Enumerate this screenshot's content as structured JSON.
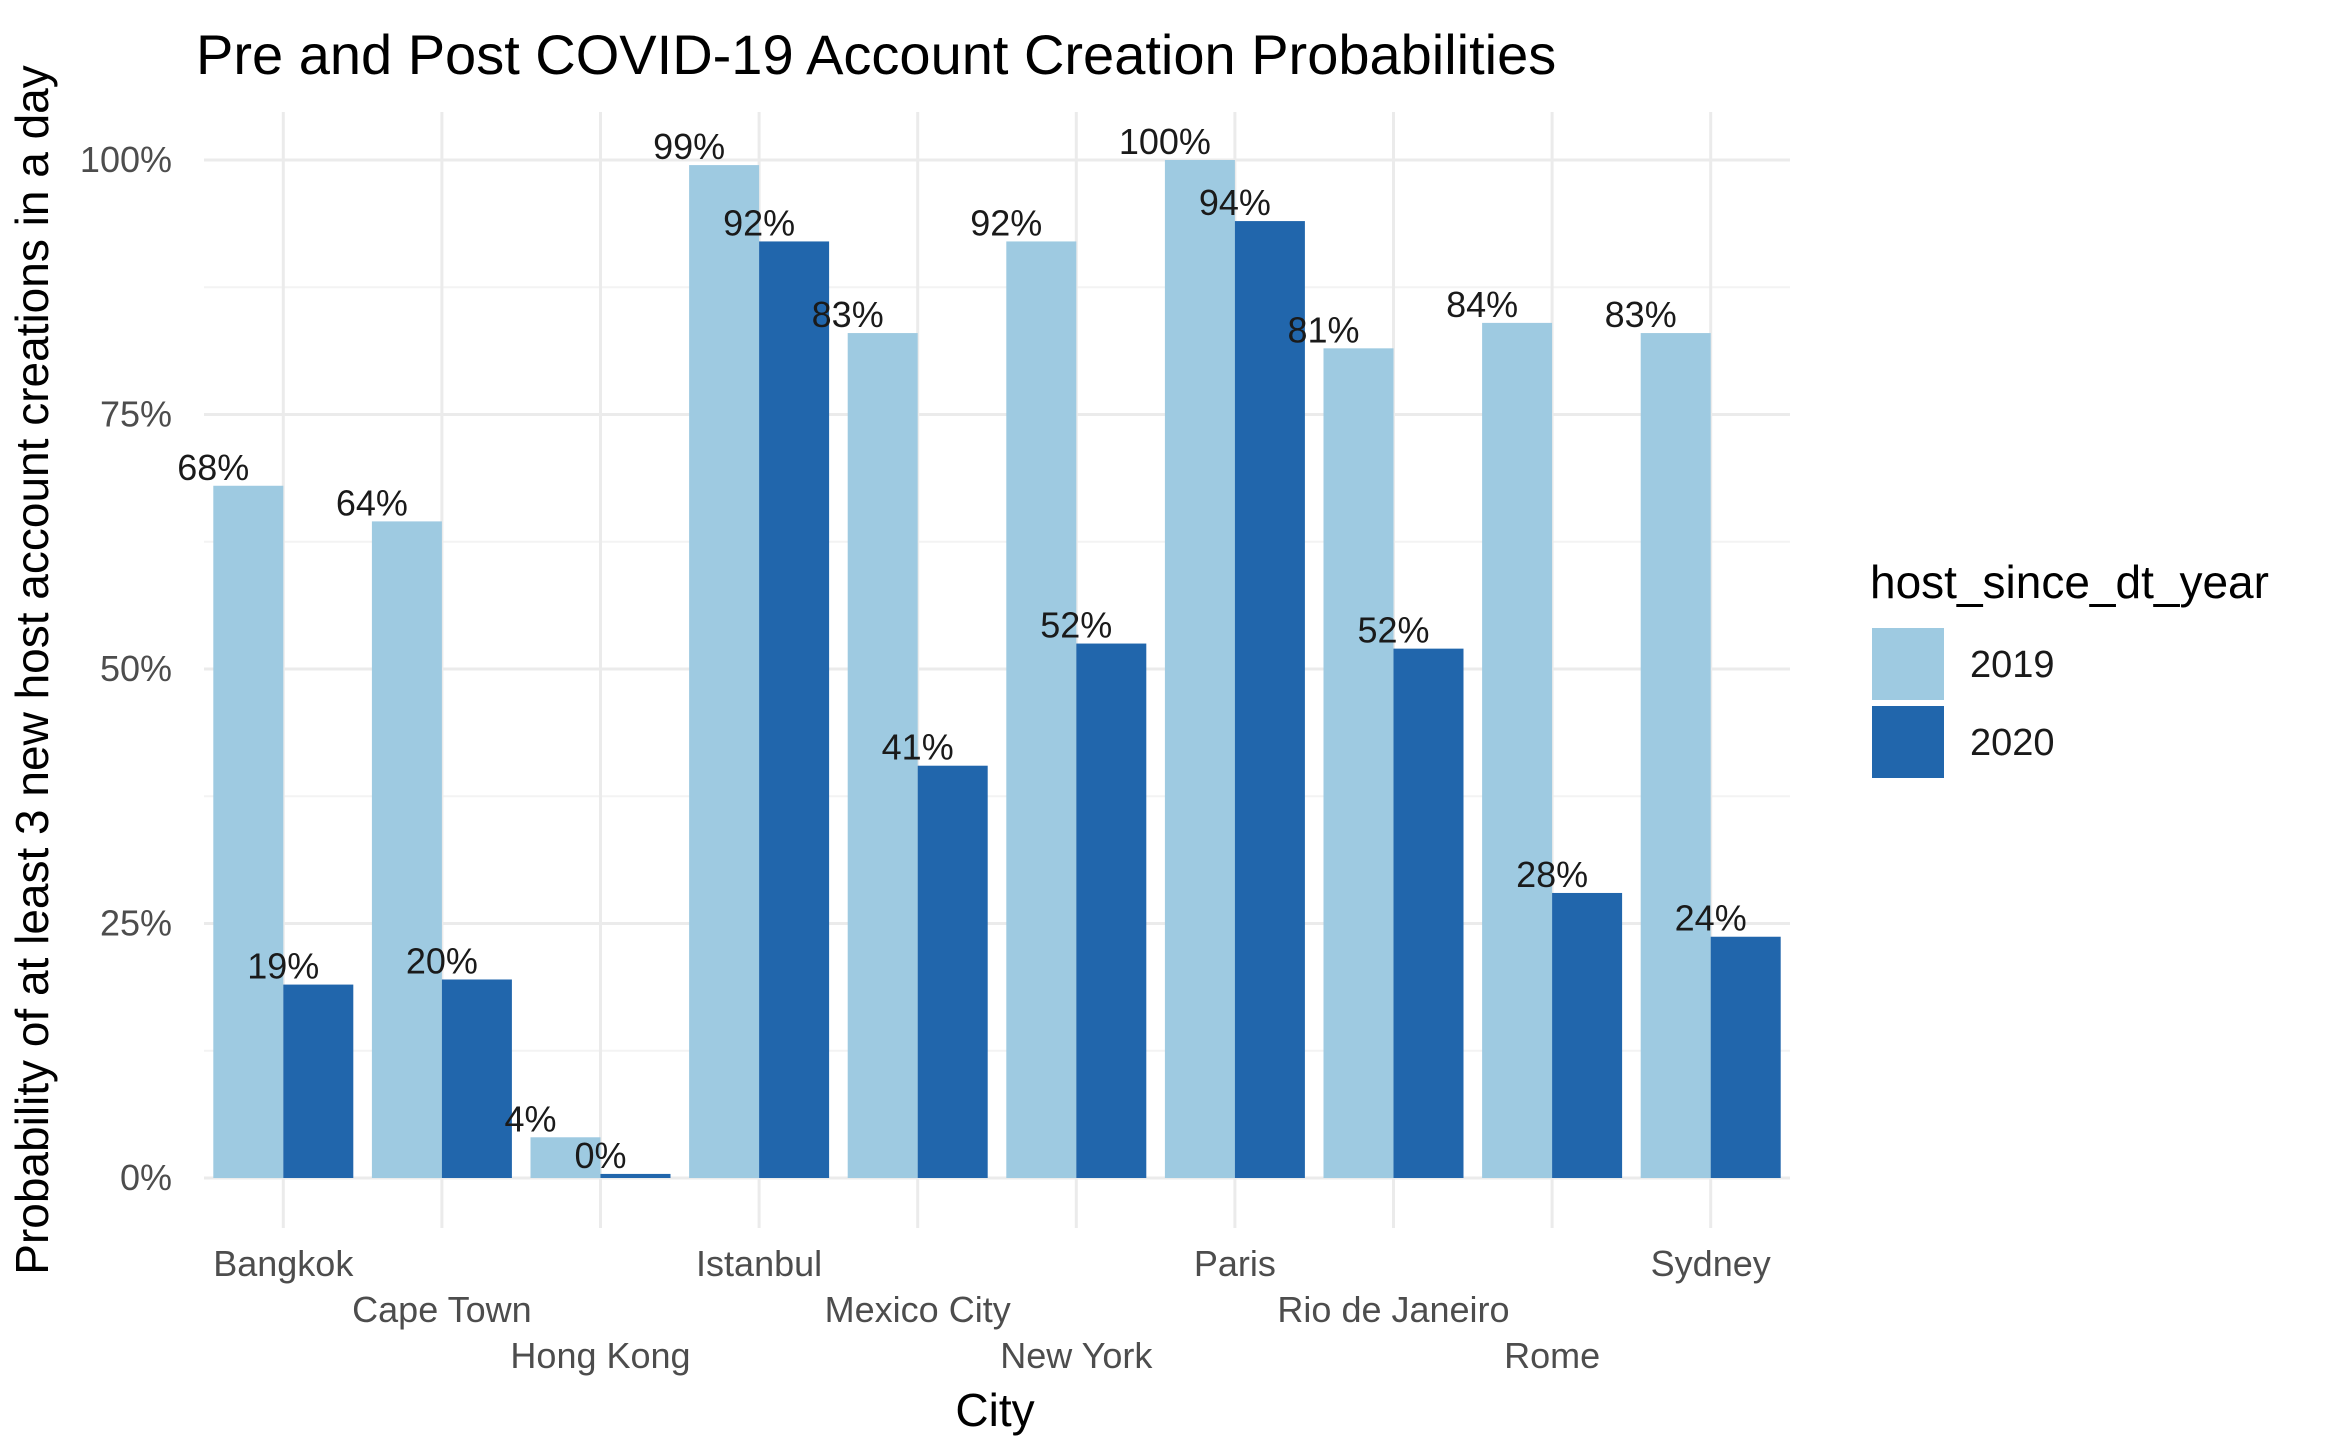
{
  "chart_data": {
    "type": "bar",
    "title": "Pre and Post COVID-19 Account Creation Probabilities",
    "xlabel": "City",
    "ylabel": "Probability of at least 3 new host account creations in a day",
    "categories": [
      "Bangkok",
      "Cape Town",
      "Hong Kong",
      "Istanbul",
      "Mexico City",
      "New York",
      "Paris",
      "Rio de Janeiro",
      "Rome",
      "Sydney"
    ],
    "series": [
      {
        "name": "2019",
        "color": "#9ecae1",
        "values": [
          0.68,
          0.645,
          0.04,
          0.995,
          0.83,
          0.92,
          1.0,
          0.815,
          0.84,
          0.83
        ],
        "labels": [
          "68%",
          "64%",
          "4%",
          "99%",
          "83%",
          "92%",
          "100%",
          "81%",
          "84%",
          "83%"
        ]
      },
      {
        "name": "2020",
        "color": "#2166ac",
        "values": [
          0.19,
          0.195,
          0.004,
          0.92,
          0.405,
          0.525,
          0.94,
          0.52,
          0.28,
          0.237
        ],
        "labels": [
          "19%",
          "20%",
          "0%",
          "92%",
          "41%",
          "52%",
          "94%",
          "52%",
          "28%",
          "24%"
        ]
      }
    ],
    "ylim": [
      0,
      1
    ],
    "yticks": [
      0,
      0.25,
      0.5,
      0.75,
      1.0
    ],
    "ytick_labels": [
      "0%",
      "25%",
      "50%",
      "75%",
      "100%"
    ],
    "legend": {
      "title": "host_since_dt_year",
      "position": "right"
    },
    "grid": true
  }
}
